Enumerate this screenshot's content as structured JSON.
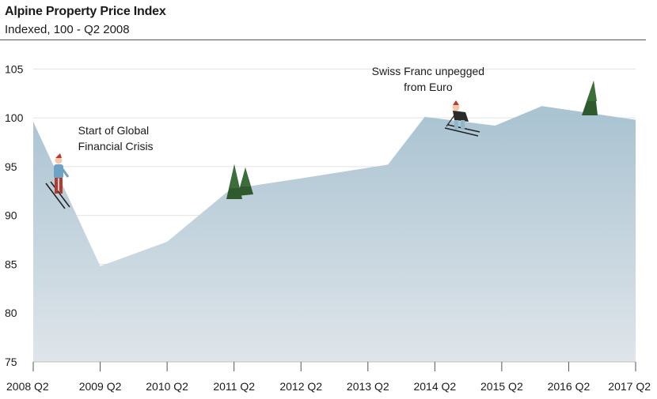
{
  "chart_data": {
    "type": "area",
    "title": "Alpine Property Price Index",
    "subtitle": "Indexed, 100 - Q2 2008",
    "xlabel": "",
    "ylabel": "",
    "ylim": [
      75,
      106
    ],
    "yticks": [
      75,
      80,
      85,
      90,
      95,
      100,
      105
    ],
    "xticks": [
      "2008 Q2",
      "2009 Q2",
      "2010 Q2",
      "2011 Q2",
      "2012 Q2",
      "2013 Q2",
      "2014 Q2",
      "2015 Q2",
      "2016 Q2",
      "2017 Q2"
    ],
    "grid": true,
    "x": [
      0,
      1,
      2,
      2.95,
      4,
      5.3,
      5.85,
      6.9,
      7.6,
      9.0
    ],
    "values": [
      99.6,
      84.8,
      87.3,
      92.7,
      93.8,
      95.2,
      100.1,
      99.2,
      101.2,
      99.8
    ],
    "fill_top": "#a9c3d1",
    "fill_bottom": "#dfe5ea",
    "annotations": [
      {
        "text": [
          "Start of Global",
          "Financial Crisis"
        ],
        "x": 0.67,
        "y": 98.3
      },
      {
        "text": [
          "Swiss Franc unpegged",
          "from Euro"
        ],
        "x": 5.9,
        "y": 104.4
      }
    ]
  }
}
